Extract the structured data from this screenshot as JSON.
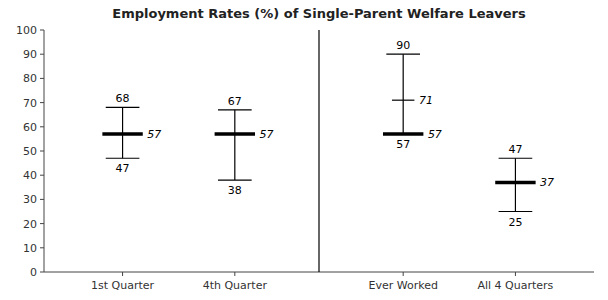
{
  "chart_data": {
    "type": "range",
    "title": "Employment Rates (%) of Single-Parent Welfare Leavers",
    "categories": [
      "1st Quarter",
      "4th Quarter",
      "Ever Worked",
      "All 4 Quarters"
    ],
    "high": [
      68,
      67,
      90,
      47
    ],
    "mid": [
      57,
      57,
      57,
      37
    ],
    "low": [
      47,
      38,
      57,
      25
    ],
    "extra": [
      null,
      null,
      71,
      null
    ],
    "ylim": [
      0,
      100
    ],
    "yticks": [
      0,
      10,
      20,
      30,
      40,
      50,
      60,
      70,
      80,
      90,
      100
    ],
    "color": "#000000",
    "data_labels": true,
    "grid": false
  }
}
